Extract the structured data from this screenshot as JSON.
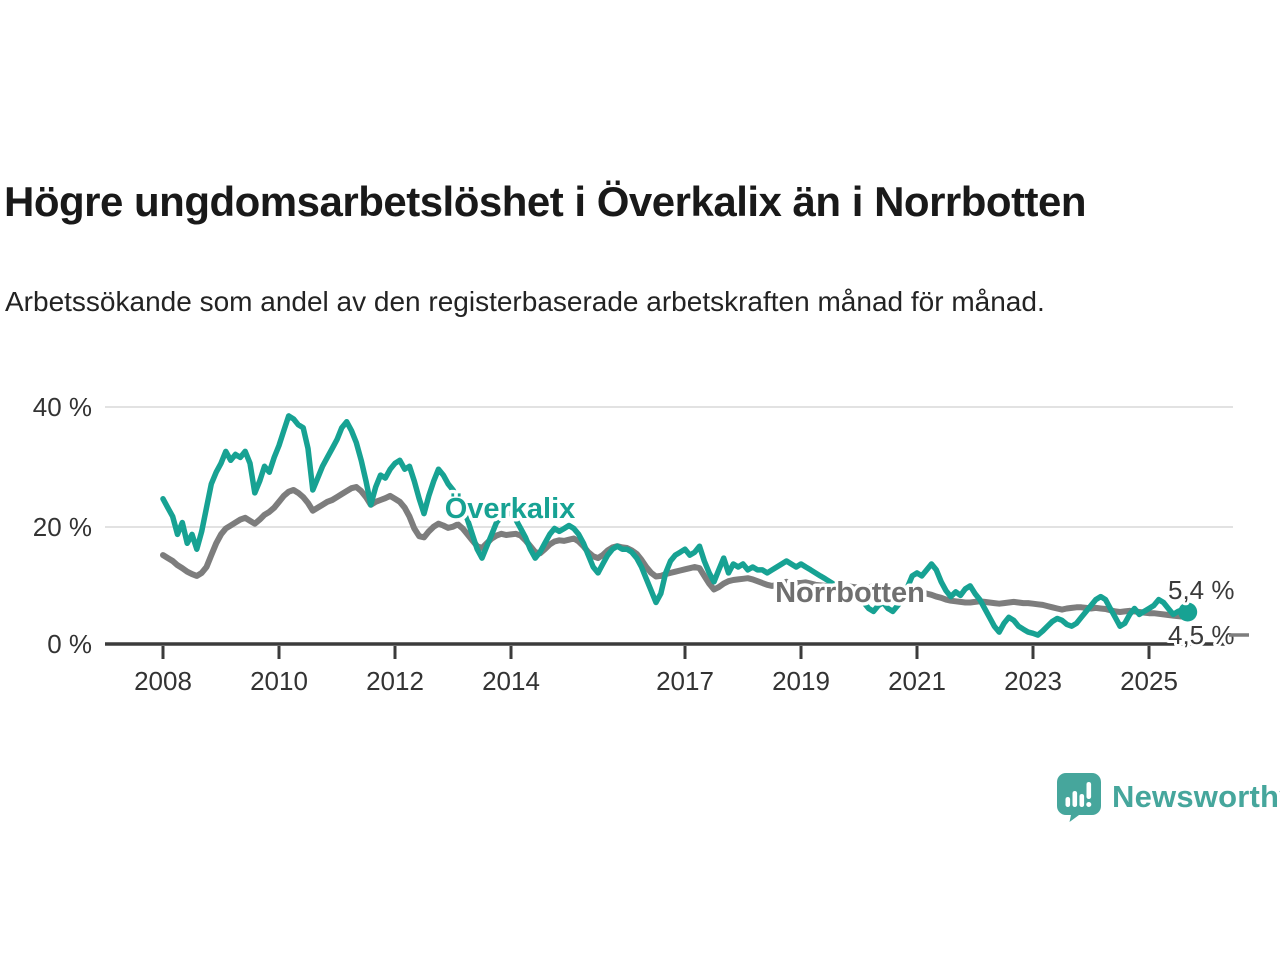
{
  "header": {
    "title": "Högre ungdomsarbetslöshet i Överkalix än i Norrbotten",
    "subtitle": "Arbetssökande som andel av den registerbaserade arbetskraften månad för månad."
  },
  "chart_data": {
    "type": "line",
    "title": "Högre ungdomsarbetslöshet i Överkalix än i Norrbotten",
    "subtitle": "Arbetssökande som andel av den registerbaserade arbetskraften månad för månad.",
    "unit": "%",
    "frequency": "monthly",
    "x_start": "2008-01",
    "x_end": "2025-09",
    "ylim": [
      0,
      40
    ],
    "grid": "horizontal",
    "legend_position": "inline-labels",
    "ytick_labels": [
      "40 %",
      "20 %",
      "0 %"
    ],
    "xtick_labels": [
      "2008",
      "2010",
      "2012",
      "2014",
      "2017",
      "2019",
      "2021",
      "2023",
      "2025"
    ],
    "series": [
      {
        "name": "Överkalix",
        "color": "#17a293",
        "end_label": "5,4 %",
        "end_value": 5.4,
        "values": [
          24.5,
          23,
          21.5,
          18.5,
          20.5,
          17,
          18.5,
          16,
          19,
          23,
          27,
          29,
          30.5,
          32.5,
          31,
          32,
          31.5,
          32.5,
          30.5,
          25.5,
          27.5,
          30,
          29,
          31.5,
          33.5,
          36,
          38.5,
          38,
          37,
          36.5,
          33,
          26,
          28,
          30,
          31.5,
          33,
          34.5,
          36.5,
          37.5,
          36,
          34,
          31,
          27.5,
          23.5,
          26.5,
          28.5,
          28,
          29.5,
          30.5,
          31,
          29.5,
          30,
          27.5,
          24.5,
          22,
          25,
          27.5,
          29.5,
          28.5,
          27,
          26,
          24.5,
          23,
          21,
          18.5,
          16,
          14.5,
          16.5,
          18.5,
          20.5,
          21.5,
          22,
          22,
          21,
          19.5,
          18,
          16,
          14.5,
          15.5,
          17,
          18.5,
          19.5,
          19,
          19.5,
          20,
          19.5,
          18.5,
          17,
          15,
          13,
          12,
          13.5,
          15,
          16,
          16.5,
          16,
          16,
          15.5,
          14.5,
          13,
          11,
          9,
          7,
          8.5,
          12,
          14,
          15,
          15.5,
          16,
          15,
          15.5,
          16.5,
          14,
          12,
          10.5,
          12.5,
          14.5,
          12,
          13.5,
          13,
          13.5,
          12.5,
          13,
          12.5,
          12.5,
          12,
          12.5,
          13,
          13.5,
          14,
          13.5,
          13,
          13.5,
          13,
          12.5,
          12,
          11.5,
          11,
          10.5,
          10,
          9.5,
          9,
          8.5,
          8,
          7.5,
          7,
          6,
          5.5,
          6.5,
          7,
          6,
          5.5,
          6.5,
          7.5,
          9.5,
          11.5,
          12,
          11.5,
          12.5,
          13.5,
          12.5,
          10.5,
          9,
          8,
          8.8,
          8.2,
          9.3,
          9.8,
          8.5,
          7.5,
          6,
          4.5,
          3,
          2,
          3.5,
          4.5,
          4,
          3,
          2.5,
          2,
          1.8,
          1.5,
          2.2,
          3,
          3.8,
          4.3,
          4,
          3.3,
          3,
          3.5,
          4.5,
          5.5,
          6.5,
          7.5,
          8,
          7.5,
          6,
          4.5,
          3,
          3.5,
          5,
          6,
          5,
          5.5,
          6,
          6.5,
          7.5,
          7,
          6,
          5,
          5.5,
          5.8,
          5.4
        ]
      },
      {
        "name": "Norrbotten",
        "color": "#7d7d7d",
        "end_label": "4,5 %",
        "end_value": 4.5,
        "values": [
          15,
          14.5,
          14,
          13.3,
          12.8,
          12.2,
          11.8,
          11.5,
          12,
          13,
          15,
          17,
          18.5,
          19.5,
          20,
          20.5,
          21,
          21.3,
          20.8,
          20.3,
          21,
          21.8,
          22.3,
          23,
          24,
          25,
          25.7,
          26,
          25.5,
          24.8,
          23.8,
          22.5,
          23,
          23.5,
          24,
          24.3,
          24.8,
          25.3,
          25.8,
          26.3,
          26.5,
          25.8,
          24.8,
          23.5,
          24,
          24.3,
          24.6,
          25,
          24.5,
          24,
          23,
          21.5,
          19.5,
          18.2,
          18,
          19,
          19.8,
          20.3,
          20,
          19.6,
          19.8,
          20.2,
          19.5,
          18.5,
          17.5,
          16.5,
          16.2,
          17,
          17.8,
          18.3,
          18.6,
          18.4,
          18.5,
          18.6,
          18.3,
          17.5,
          16.5,
          15.5,
          15.3,
          16,
          16.8,
          17.3,
          17.5,
          17.4,
          17.6,
          17.8,
          17.3,
          16.5,
          15.5,
          14.8,
          14.5,
          15,
          15.8,
          16.3,
          16.5,
          16.3,
          16.2,
          15.8,
          15.2,
          14.2,
          13,
          12,
          11.4,
          11.5,
          11.8,
          12,
          12.2,
          12.4,
          12.6,
          12.8,
          13,
          12.8,
          11.5,
          10.2,
          9.2,
          9.6,
          10.2,
          10.6,
          10.8,
          10.9,
          11,
          11.1,
          10.9,
          10.6,
          10.3,
          10,
          9.8,
          10,
          10.3,
          10.5,
          10.4,
          10.3,
          10.3,
          10.4,
          10.2,
          10,
          9.9,
          9.8,
          9.7,
          9.6,
          9.6,
          9.7,
          9.7,
          9.6,
          9.5,
          9.4,
          9.5,
          9.8,
          9.9,
          9.8,
          9.6,
          9.4,
          9.2,
          9,
          8.9,
          8.8,
          8.8,
          8.7,
          8.5,
          8.3,
          8,
          7.8,
          7.5,
          7.3,
          7.2,
          7.1,
          7,
          7,
          7.1,
          7.2,
          7.1,
          7,
          6.9,
          6.8,
          6.9,
          7,
          7.1,
          7,
          6.9,
          6.9,
          6.8,
          6.7,
          6.6,
          6.4,
          6.2,
          6,
          5.8,
          6,
          6.1,
          6.2,
          6.2,
          6.1,
          6,
          6.1,
          6,
          5.9,
          5.7,
          5.5,
          5.4,
          5.5,
          5.6,
          5.5,
          5.4,
          5.3,
          5.2,
          5.2,
          5.1,
          5,
          4.9,
          4.8,
          4.7,
          4.6,
          4.5
        ]
      }
    ]
  },
  "branding": {
    "name": "Newsworthy",
    "color": "#46a69c",
    "icon": "newsworthy-bubble-chart-icon"
  }
}
